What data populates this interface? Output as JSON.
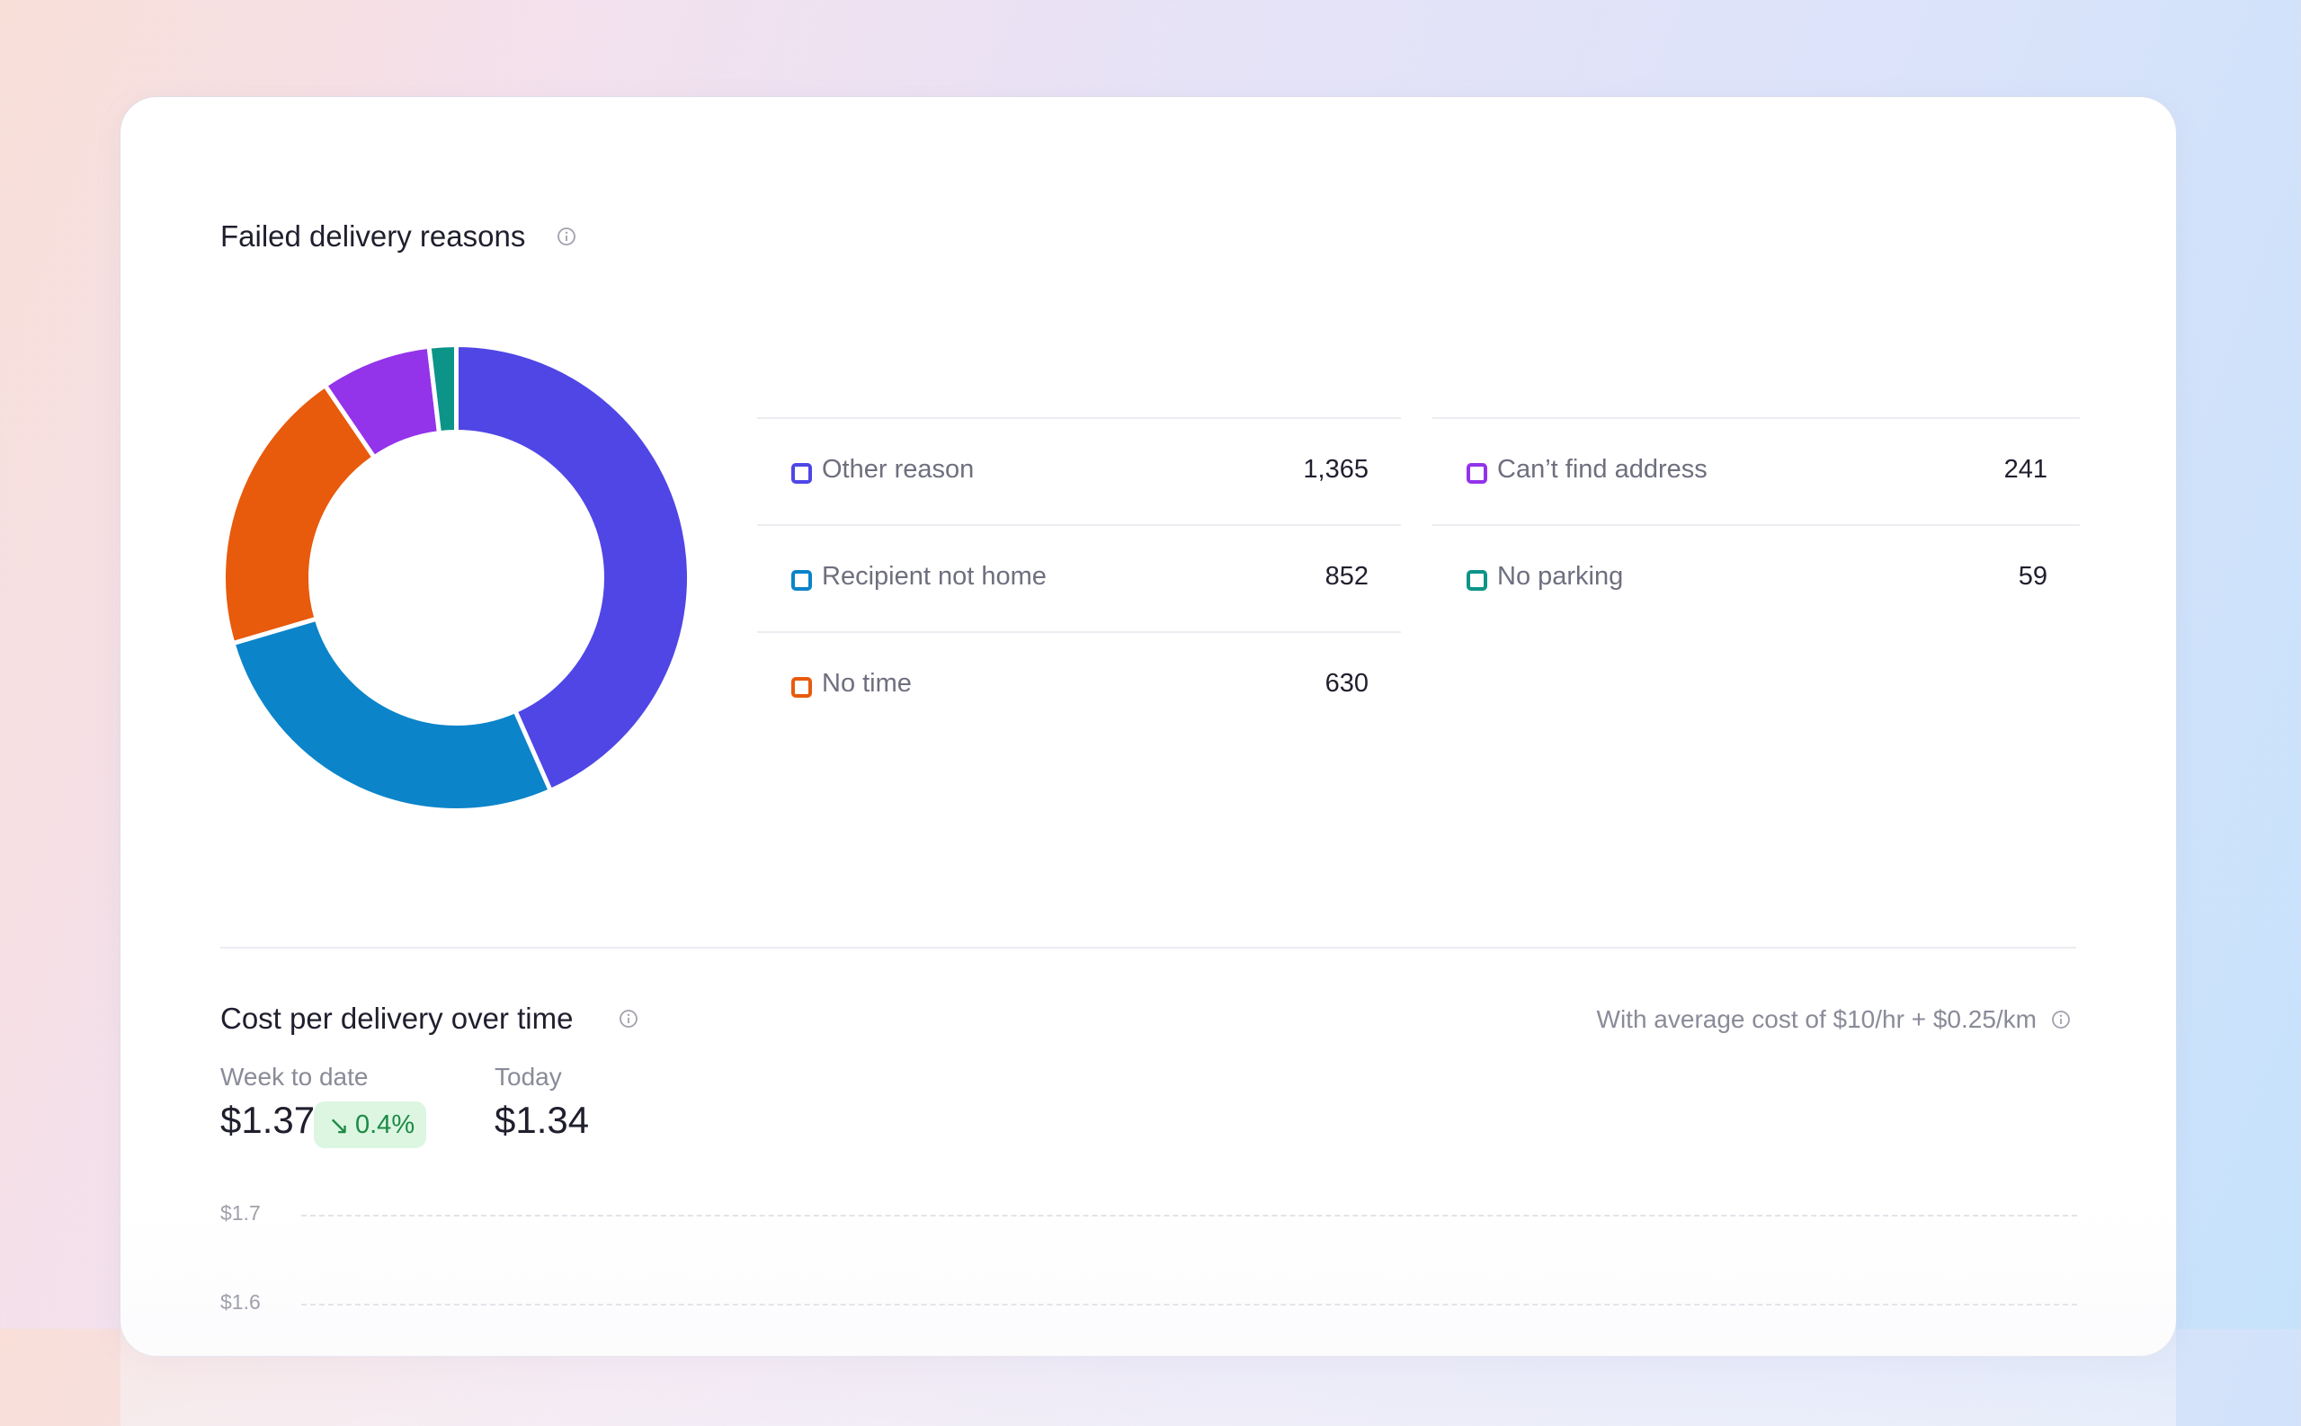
{
  "failed_delivery": {
    "title": "Failed delivery reasons",
    "legend": [
      {
        "label": "Other reason",
        "value": "1,365",
        "color": "#4f46e5"
      },
      {
        "label": "Recipient not home",
        "value": "852",
        "color": "#0b84c9"
      },
      {
        "label": "No time",
        "value": "630",
        "color": "#e85a0c"
      },
      {
        "label": "Can’t find address",
        "value": "241",
        "color": "#9333ea"
      },
      {
        "label": "No parking",
        "value": "59",
        "color": "#0d9488"
      }
    ]
  },
  "cost": {
    "title": "Cost per delivery over time",
    "note": "With average cost of $10/hr + $0.25/km",
    "week_label": "Week to date",
    "week_value": "$1.37",
    "badge_arrow": "↘",
    "badge_value": "0.4%",
    "today_label": "Today",
    "today_value": "$1.34",
    "ticks": [
      "$1.7",
      "$1.6"
    ]
  },
  "chart_data": [
    {
      "type": "pie",
      "title": "Failed delivery reasons",
      "categories": [
        "Other reason",
        "Recipient not home",
        "No time",
        "Can’t find address",
        "No parking"
      ],
      "values": [
        1365,
        852,
        630,
        241,
        59
      ],
      "colors": [
        "#4f46e5",
        "#0b84c9",
        "#e85a0c",
        "#9333ea",
        "#0d9488"
      ]
    },
    {
      "type": "line",
      "title": "Cost per delivery over time",
      "y_ticks": [
        "$1.7",
        "$1.6"
      ],
      "series": []
    }
  ]
}
